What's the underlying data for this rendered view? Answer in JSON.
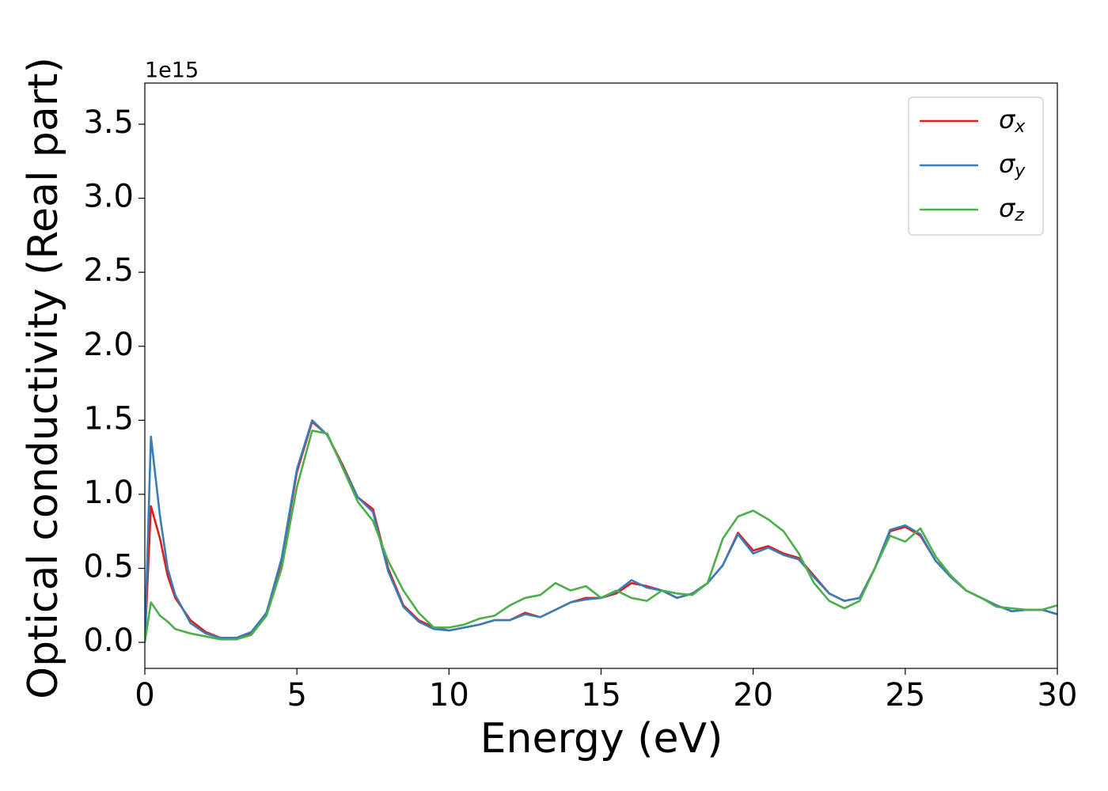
{
  "chart_data": {
    "type": "line",
    "xlabel": "Energy (eV)",
    "ylabel": "Optical conductivity (Real part)",
    "y_offset_label": "1e15",
    "x": [
      0,
      0.2,
      0.5,
      0.75,
      1,
      1.5,
      2,
      2.5,
      3,
      3.5,
      4,
      4.5,
      5,
      5.5,
      6,
      6.5,
      7,
      7.5,
      8,
      8.5,
      9,
      9.5,
      10,
      10.5,
      11,
      11.5,
      12,
      12.5,
      13,
      13.5,
      14,
      14.5,
      15,
      15.5,
      16,
      16.5,
      17,
      17.5,
      18,
      18.5,
      19,
      19.5,
      20,
      20.5,
      21,
      21.5,
      22,
      22.5,
      23,
      23.5,
      24,
      24.5,
      25,
      25.5,
      26,
      26.5,
      27,
      27.5,
      28,
      28.5,
      29,
      29.5,
      30
    ],
    "series": [
      {
        "name": "σx",
        "color": "#e41a1c",
        "values": [
          0,
          0.92,
          0.7,
          0.45,
          0.3,
          0.15,
          0.07,
          0.03,
          0.03,
          0.06,
          0.2,
          0.55,
          1.15,
          1.49,
          1.4,
          1.2,
          0.98,
          0.9,
          0.5,
          0.25,
          0.15,
          0.1,
          0.08,
          0.1,
          0.12,
          0.15,
          0.15,
          0.2,
          0.17,
          0.22,
          0.27,
          0.3,
          0.3,
          0.33,
          0.4,
          0.38,
          0.35,
          0.3,
          0.33,
          0.4,
          0.52,
          0.74,
          0.62,
          0.65,
          0.6,
          0.57,
          0.45,
          0.33,
          0.28,
          0.3,
          0.5,
          0.75,
          0.78,
          0.72,
          0.55,
          0.45,
          0.35,
          0.3,
          0.25,
          0.21,
          0.22,
          0.22,
          0.19
        ]
      },
      {
        "name": "σy",
        "color": "#377eb8",
        "values": [
          0,
          1.39,
          0.85,
          0.5,
          0.32,
          0.13,
          0.06,
          0.03,
          0.03,
          0.07,
          0.2,
          0.57,
          1.17,
          1.5,
          1.4,
          1.19,
          0.98,
          0.88,
          0.48,
          0.24,
          0.14,
          0.09,
          0.08,
          0.1,
          0.12,
          0.15,
          0.15,
          0.19,
          0.17,
          0.22,
          0.27,
          0.29,
          0.3,
          0.34,
          0.42,
          0.37,
          0.35,
          0.3,
          0.33,
          0.4,
          0.52,
          0.73,
          0.6,
          0.64,
          0.59,
          0.56,
          0.44,
          0.33,
          0.28,
          0.3,
          0.5,
          0.76,
          0.79,
          0.73,
          0.55,
          0.44,
          0.35,
          0.3,
          0.25,
          0.21,
          0.22,
          0.22,
          0.19
        ]
      },
      {
        "name": "σz",
        "color": "#4daf4a",
        "values": [
          0,
          0.27,
          0.18,
          0.14,
          0.09,
          0.06,
          0.04,
          0.02,
          0.02,
          0.05,
          0.18,
          0.5,
          1.05,
          1.43,
          1.41,
          1.18,
          0.95,
          0.82,
          0.55,
          0.35,
          0.2,
          0.1,
          0.1,
          0.12,
          0.16,
          0.18,
          0.25,
          0.3,
          0.32,
          0.4,
          0.35,
          0.38,
          0.3,
          0.35,
          0.3,
          0.28,
          0.35,
          0.33,
          0.32,
          0.4,
          0.7,
          0.85,
          0.89,
          0.83,
          0.75,
          0.6,
          0.4,
          0.28,
          0.23,
          0.28,
          0.5,
          0.72,
          0.68,
          0.77,
          0.58,
          0.45,
          0.35,
          0.3,
          0.24,
          0.23,
          0.22,
          0.22,
          0.25
        ]
      }
    ],
    "xlim": [
      0,
      30
    ],
    "xticks": [
      0,
      5,
      10,
      15,
      20,
      25,
      30
    ],
    "ylim": [
      -0.176,
      3.778
    ],
    "yticks": [
      {
        "value": 0,
        "label": "0.0"
      },
      0.5,
      {
        "value": 1,
        "label": "1.0"
      },
      1.5,
      {
        "value": 2,
        "label": "2.0"
      },
      2.5,
      {
        "value": 3,
        "label": "3.0"
      },
      3.5
    ],
    "grid": false,
    "legend": "upper right"
  }
}
